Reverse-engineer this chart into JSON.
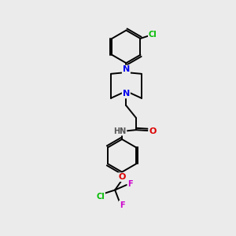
{
  "background_color": "#ebebeb",
  "bond_color": "#000000",
  "atom_colors": {
    "N": "#0000ee",
    "O": "#dd0000",
    "Cl": "#00bb00",
    "F": "#cc00cc",
    "C": "#000000",
    "H": "#555555"
  }
}
